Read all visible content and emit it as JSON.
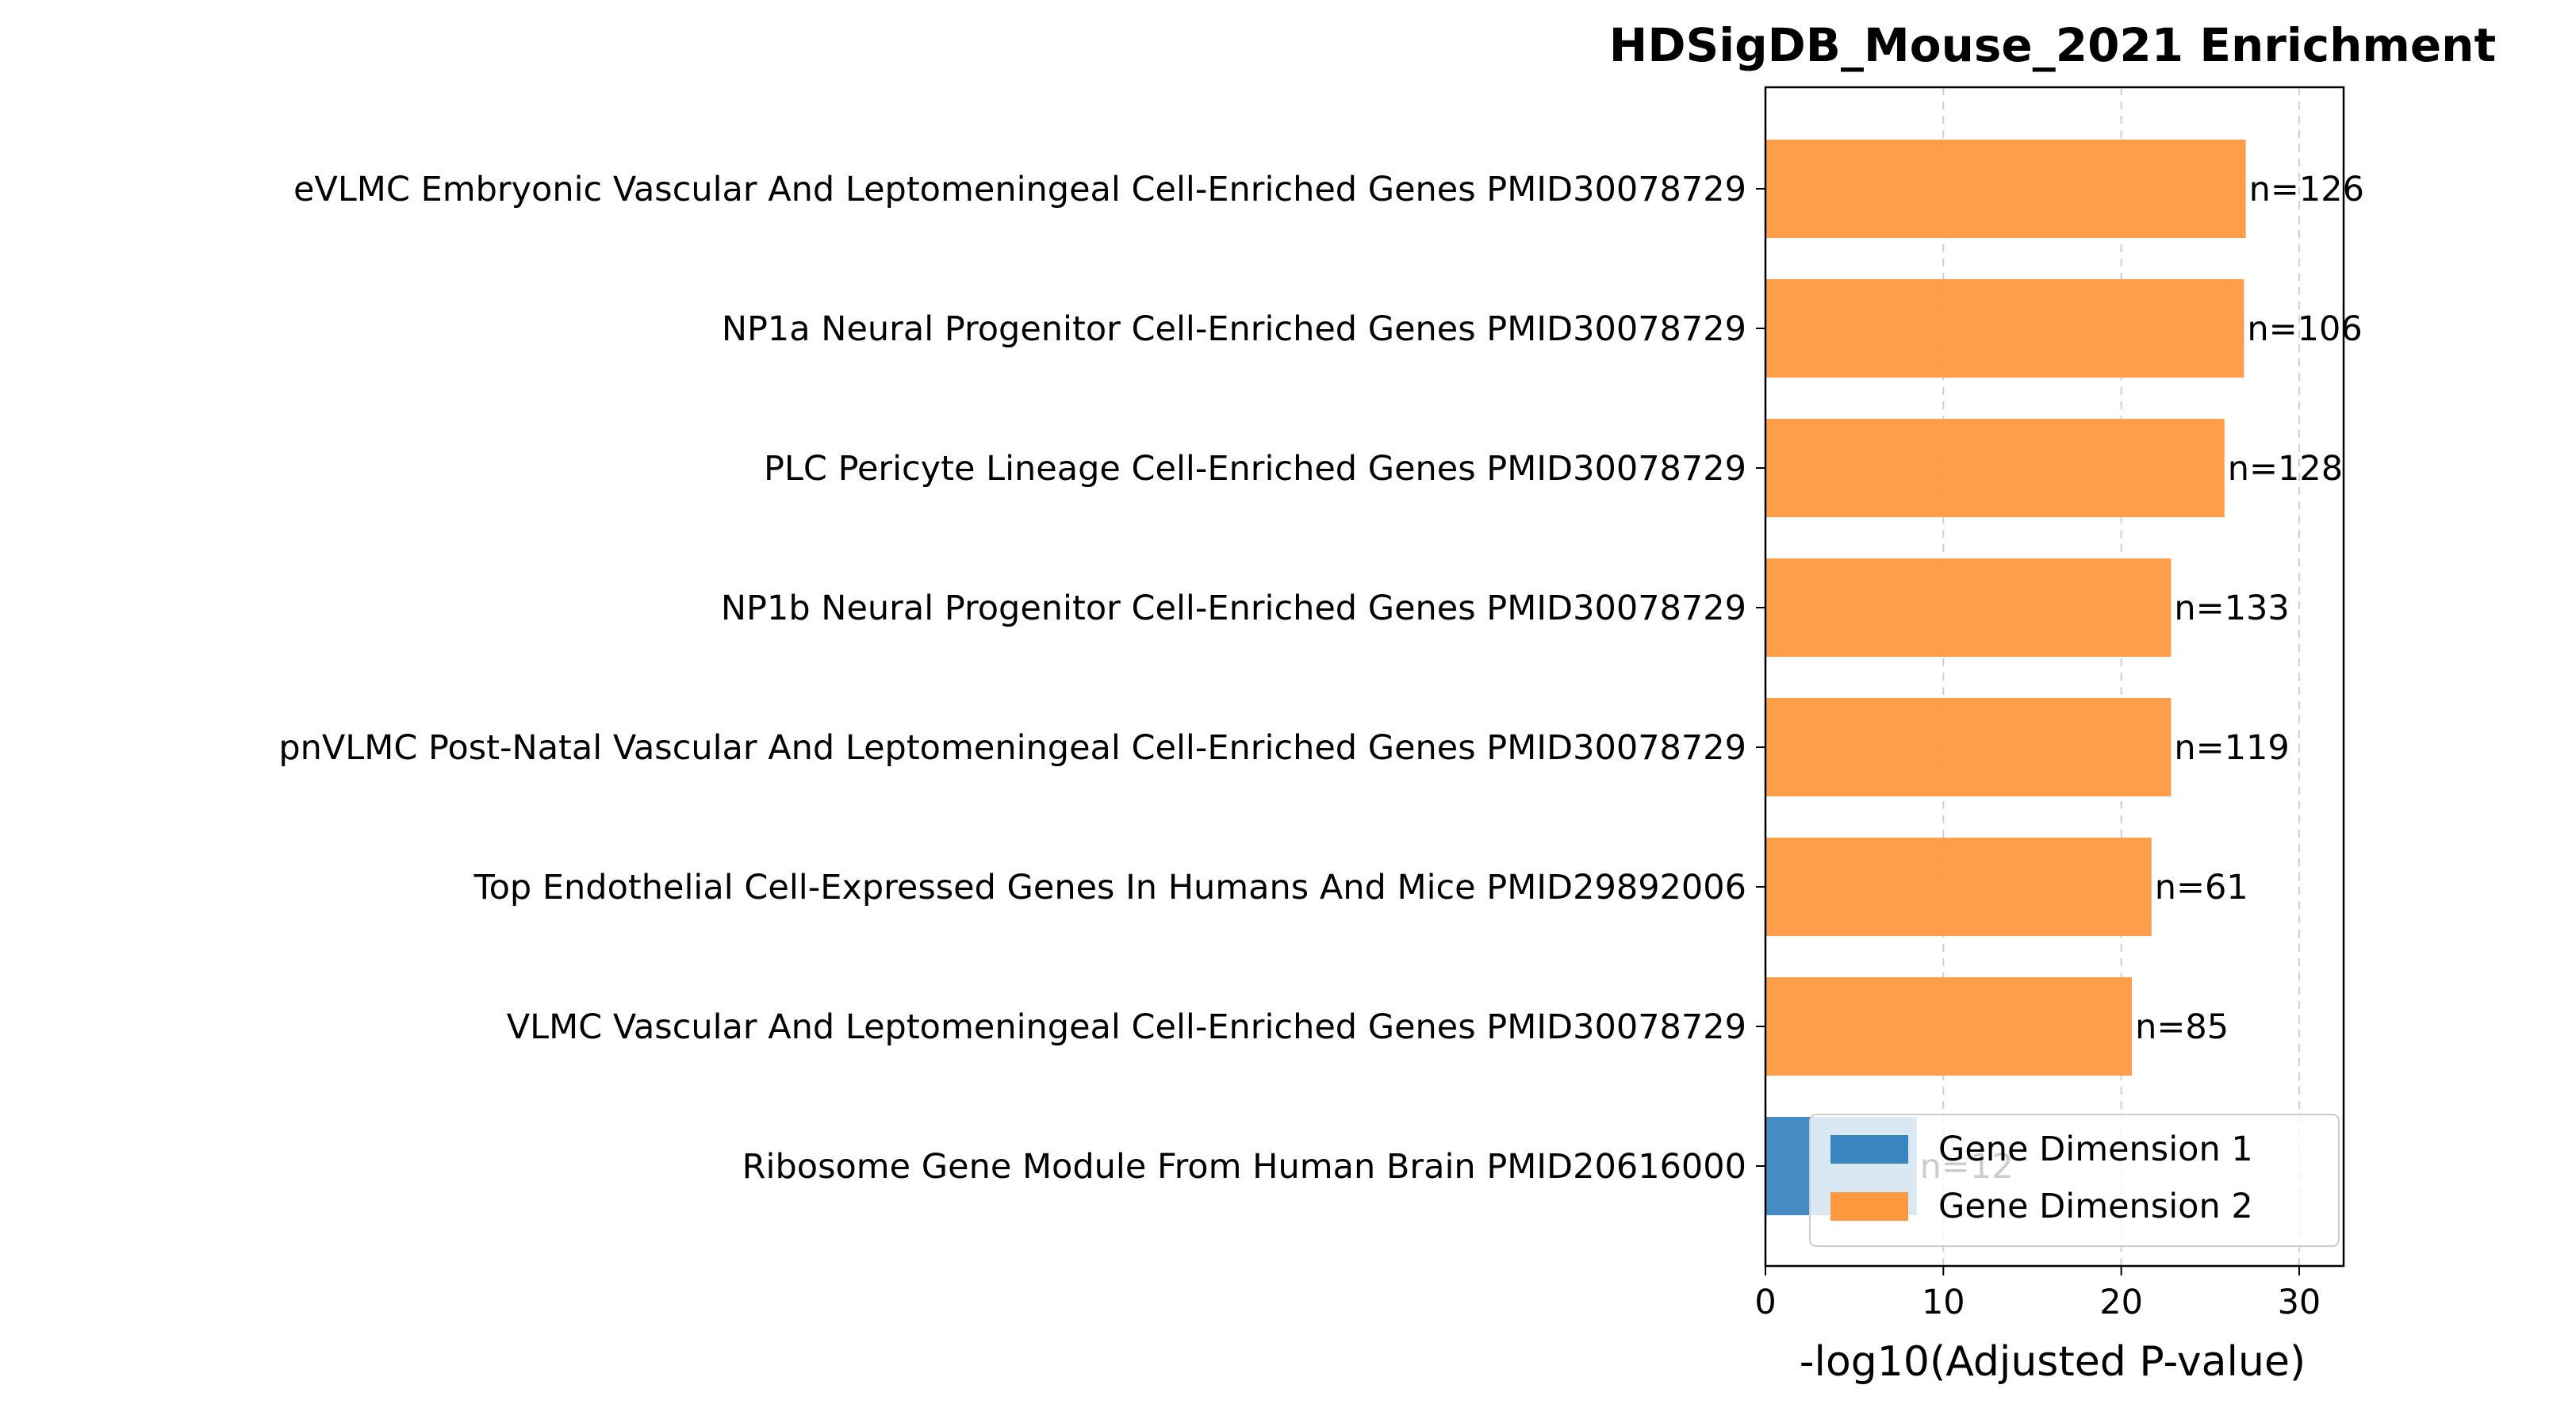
{
  "chart_data": {
    "type": "bar",
    "orientation": "horizontal",
    "title": "HDSigDB_Mouse_2021 Enrichment",
    "xlabel": "-log10(Adjusted P-value)",
    "ylabel": "",
    "xlim": [
      0,
      32.5
    ],
    "xticks": [
      0,
      10,
      20,
      30
    ],
    "grid": "x, dashed",
    "legend_position": "lower-right",
    "categories": [
      "eVLMC Embryonic Vascular And Leptomeningeal Cell-Enriched Genes PMID30078729",
      "NP1a Neural Progenitor Cell-Enriched Genes PMID30078729",
      "PLC Pericyte Lineage Cell-Enriched Genes PMID30078729",
      "NP1b Neural Progenitor Cell-Enriched Genes PMID30078729",
      "pnVLMC Post-Natal Vascular And Leptomeningeal Cell-Enriched Genes PMID30078729",
      "Top Endothelial Cell-Expressed Genes In Humans And Mice PMID29892006",
      "VLMC Vascular And Leptomeningeal Cell-Enriched Genes PMID30078729",
      "Ribosome Gene Module From Human Brain PMID20616000"
    ],
    "values": [
      27.0,
      26.9,
      25.8,
      22.8,
      22.8,
      21.7,
      20.6,
      8.5
    ],
    "series_index": [
      1,
      1,
      1,
      1,
      1,
      1,
      1,
      0
    ],
    "annotations": [
      "n=126",
      "n=106",
      "n=128",
      "n=133",
      "n=119",
      "n=61",
      "n=85",
      "n=12"
    ],
    "series": [
      {
        "name": "Gene Dimension 1",
        "color": "#3a86c0"
      },
      {
        "name": "Gene Dimension 2",
        "color": "#fe9940"
      }
    ]
  }
}
